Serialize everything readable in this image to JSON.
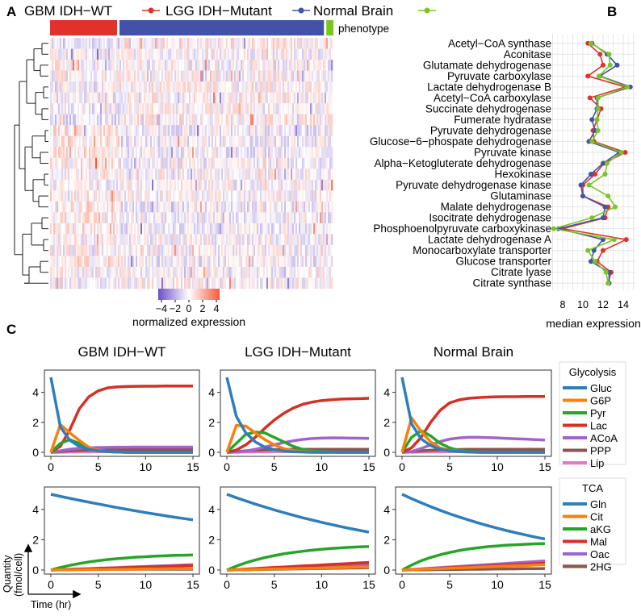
{
  "panels": {
    "a": "A",
    "b": "B",
    "c": "C"
  },
  "legend_top": [
    {
      "label": "GBM IDH−WT",
      "color": "#e0312b"
    },
    {
      "label": "LGG IDH−Mutant",
      "color": "#4252a8"
    },
    {
      "label": "Normal Brain",
      "color": "#78c71f"
    }
  ],
  "chart_data": [
    {
      "type": "heatmap",
      "phenotype_label": "phenotype",
      "rows": [
        "Acetyl−CoA synthase",
        "Aconitase",
        "Glutamate dehydrogenase",
        "Pyruvate carboxylase",
        "Lactate dehydrogenase B",
        "Acetyl−CoA carboxylase",
        "Succinate dehydrogenase",
        "Fumerate hydratase",
        "Pyruvate dehydrogenase",
        "Glucose−6−phospate dehydrogenase",
        "Pyruvate kinase",
        "Alpha−Ketogluterate dehydrogenase",
        "Hexokinase",
        "Pyruvate dehydrogenase kinase",
        "Glutaminase",
        "Malate dehydrogenase",
        "Isocitrate dehydrogenase",
        "Phosphoenolpyruvate carboxykinase",
        "Lactate dehydrogenase A",
        "Monocarboxylate transporter",
        "Glucose transporter",
        "Citrate lyase",
        "Citrate synthase"
      ],
      "column_groups": [
        {
          "name": "GBM IDH-WT",
          "fraction": 0.245,
          "color": "#e0312b"
        },
        {
          "name": "LGG IDH-Mutant",
          "fraction": 0.73,
          "color": "#4252a8"
        },
        {
          "name": "Normal Brain",
          "fraction": 0.025,
          "color": "#78c71f"
        }
      ],
      "color_scale": {
        "min": -4,
        "max": 4,
        "low": "#6a4fc9",
        "mid": "#ffffff",
        "high": "#f45a3a"
      },
      "colorbar_ticks": [
        "−4",
        "−2",
        "0",
        "2",
        "4"
      ],
      "colorbar_label": "normalized expression"
    },
    {
      "type": "line",
      "orientation": "horizontal",
      "xlabel": "median expression",
      "xticks": [
        8,
        10,
        12,
        14
      ],
      "xlim": [
        6.9,
        15.2
      ],
      "series": [
        {
          "name": "GBM IDH-WT",
          "color": "#e0312b",
          "values": [
            10.5,
            11.7,
            12.0,
            10.5,
            14.2,
            10.7,
            11.8,
            11.4,
            11.0,
            11.1,
            14.2,
            12.1,
            11.2,
            10.0,
            10.0,
            12.5,
            12.2,
            8.0,
            14.3,
            12.0,
            11.4,
            12.8,
            12.5
          ]
        },
        {
          "name": "LGG IDH-Mutant",
          "color": "#4252a8",
          "values": [
            10.9,
            12.4,
            13.4,
            11.7,
            14.7,
            11.4,
            11.4,
            10.9,
            11.2,
            10.6,
            13.6,
            12.0,
            10.8,
            9.8,
            10.0,
            12.2,
            12.0,
            7.6,
            12.0,
            11.1,
            10.8,
            12.6,
            12.6
          ]
        },
        {
          "name": "Normal Brain",
          "color": "#78c71f",
          "values": [
            10.8,
            12.6,
            12.7,
            11.6,
            14.4,
            11.5,
            11.5,
            11.4,
            11.5,
            10.9,
            13.8,
            12.4,
            12.2,
            10.6,
            12.5,
            13.2,
            10.9,
            7.1,
            13.1,
            10.5,
            11.2,
            12.3,
            12.5
          ]
        }
      ]
    },
    {
      "type": "line",
      "ylabel": "Quantity (fmol/cell)",
      "xlabel": "Time (hr)",
      "xticks": [
        "0",
        "5",
        "10",
        "15"
      ],
      "yticks": [
        "0",
        "2",
        "4"
      ],
      "xlim": [
        0,
        15
      ],
      "ylim": [
        -0.2,
        5.2
      ],
      "x": [
        0,
        1,
        2,
        3,
        4,
        5,
        6,
        7,
        8,
        9,
        10,
        11,
        12,
        13,
        14,
        15
      ],
      "legends": [
        {
          "title": "Glycolysis",
          "entries": [
            {
              "name": "Gluc",
              "color": "#2f7ebc"
            },
            {
              "name": "G6P",
              "color": "#f8800f"
            },
            {
              "name": "Pyr",
              "color": "#27a52b"
            },
            {
              "name": "Lac",
              "color": "#d62f26"
            },
            {
              "name": "ACoA",
              "color": "#a363cf"
            },
            {
              "name": "PPP",
              "color": "#8b564b"
            },
            {
              "name": "Lip",
              "color": "#e57ac0"
            }
          ]
        },
        {
          "title": "TCA",
          "entries": [
            {
              "name": "Gln",
              "color": "#2f7ebc"
            },
            {
              "name": "Cit",
              "color": "#f8800f"
            },
            {
              "name": "aKG",
              "color": "#27a52b"
            },
            {
              "name": "Mal",
              "color": "#d62f26"
            },
            {
              "name": "Oac",
              "color": "#a363cf"
            },
            {
              "name": "2HG",
              "color": "#8b564b"
            }
          ]
        }
      ],
      "conditions": [
        {
          "title": "GBM IDH−WT",
          "glycolysis": {
            "Gluc": [
              5,
              1.7,
              0.8,
              0.4,
              0.2,
              0.1,
              0.05,
              0.02,
              0,
              0,
              0,
              0,
              0,
              0,
              0,
              0
            ],
            "G6P": [
              0,
              1.85,
              1.3,
              0.8,
              0.35,
              0.15,
              0.05,
              0.02,
              0,
              0,
              0,
              0,
              0,
              0,
              0,
              0
            ],
            "Pyr": [
              0,
              0.6,
              0.85,
              0.6,
              0.3,
              0.15,
              0.05,
              0.02,
              0,
              0,
              0,
              0,
              0,
              0,
              0,
              0
            ],
            "Lac": [
              0,
              0.4,
              1.5,
              2.9,
              3.7,
              4.1,
              4.3,
              4.36,
              4.39,
              4.4,
              4.41,
              4.41,
              4.42,
              4.42,
              4.42,
              4.42
            ],
            "ACoA": [
              0,
              0.1,
              0.2,
              0.27,
              0.3,
              0.32,
              0.33,
              0.34,
              0.34,
              0.35,
              0.35,
              0.35,
              0.35,
              0.35,
              0.35,
              0.35
            ],
            "PPP": [
              0,
              0.05,
              0.1,
              0.13,
              0.15,
              0.16,
              0.17,
              0.17,
              0.18,
              0.18,
              0.18,
              0.18,
              0.18,
              0.18,
              0.18,
              0.18
            ],
            "Lip": [
              0,
              0.01,
              0.02,
              0.03,
              0.03,
              0.04,
              0.04,
              0.04,
              0.05,
              0.05,
              0.05,
              0.05,
              0.05,
              0.05,
              0.05,
              0.05
            ]
          },
          "tca": {
            "Gln": [
              5,
              4.86,
              4.73,
              4.6,
              4.48,
              4.36,
              4.24,
              4.12,
              4.01,
              3.9,
              3.79,
              3.69,
              3.59,
              3.49,
              3.4,
              3.31
            ],
            "Cit": [
              0,
              0.01,
              0.01,
              0.02,
              0.03,
              0.03,
              0.04,
              0.05,
              0.05,
              0.06,
              0.07,
              0.07,
              0.08,
              0.09,
              0.09,
              0.1
            ],
            "aKG": [
              0,
              0.17,
              0.31,
              0.43,
              0.53,
              0.62,
              0.69,
              0.75,
              0.8,
              0.85,
              0.88,
              0.92,
              0.94,
              0.97,
              0.98,
              1.0
            ],
            "Mal": [
              0,
              0.02,
              0.04,
              0.06,
              0.08,
              0.1,
              0.12,
              0.14,
              0.16,
              0.18,
              0.2,
              0.22,
              0.24,
              0.26,
              0.28,
              0.3
            ],
            "Oac": [
              0,
              0.02,
              0.05,
              0.07,
              0.09,
              0.12,
              0.14,
              0.16,
              0.19,
              0.21,
              0.23,
              0.26,
              0.28,
              0.3,
              0.33,
              0.35
            ],
            "2HG": [
              0,
              0.02,
              0.03,
              0.04,
              0.04,
              0.05,
              0.05,
              0.05,
              0.05,
              0.05,
              0.05,
              0.05,
              0.05,
              0.05,
              0.05,
              0.05
            ]
          }
        },
        {
          "title": "LGG IDH−Mutant",
          "glycolysis": {
            "Gluc": [
              5,
              2.4,
              1.3,
              0.7,
              0.35,
              0.18,
              0.09,
              0.04,
              0.02,
              0,
              0,
              0,
              0,
              0,
              0,
              0
            ],
            "G6P": [
              0,
              1.8,
              1.75,
              1.3,
              0.85,
              0.5,
              0.25,
              0.12,
              0.05,
              0.02,
              0,
              0,
              0,
              0,
              0,
              0
            ],
            "Pyr": [
              0,
              0.6,
              1.2,
              1.35,
              1.3,
              1.0,
              0.7,
              0.4,
              0.2,
              0.1,
              0.05,
              0.02,
              0,
              0,
              0,
              0
            ],
            "Lac": [
              0,
              0.15,
              0.5,
              1.0,
              1.6,
              2.15,
              2.6,
              2.95,
              3.2,
              3.35,
              3.45,
              3.5,
              3.55,
              3.57,
              3.58,
              3.6
            ],
            "ACoA": [
              0,
              0.02,
              0.08,
              0.2,
              0.35,
              0.5,
              0.65,
              0.77,
              0.86,
              0.92,
              0.95,
              0.96,
              0.96,
              0.95,
              0.94,
              0.93
            ],
            "PPP": [
              0,
              0.05,
              0.1,
              0.14,
              0.16,
              0.18,
              0.19,
              0.2,
              0.2,
              0.2,
              0.2,
              0.2,
              0.2,
              0.2,
              0.2,
              0.2
            ],
            "Lip": [
              0,
              0.01,
              0.02,
              0.03,
              0.03,
              0.04,
              0.04,
              0.04,
              0.05,
              0.05,
              0.05,
              0.05,
              0.05,
              0.05,
              0.05,
              0.05
            ]
          },
          "tca": {
            "Gln": [
              5,
              4.77,
              4.56,
              4.35,
              4.16,
              3.97,
              3.79,
              3.62,
              3.45,
              3.3,
              3.15,
              3.01,
              2.87,
              2.74,
              2.62,
              2.5
            ],
            "Cit": [
              0,
              0.01,
              0.03,
              0.04,
              0.05,
              0.07,
              0.08,
              0.09,
              0.11,
              0.12,
              0.13,
              0.15,
              0.16,
              0.17,
              0.19,
              0.2
            ],
            "aKG": [
              0,
              0.26,
              0.48,
              0.66,
              0.82,
              0.95,
              1.07,
              1.16,
              1.24,
              1.31,
              1.37,
              1.42,
              1.46,
              1.5,
              1.53,
              1.55
            ],
            "Mal": [
              0,
              0.03,
              0.07,
              0.1,
              0.13,
              0.17,
              0.2,
              0.23,
              0.27,
              0.3,
              0.33,
              0.37,
              0.4,
              0.43,
              0.47,
              0.5
            ],
            "Oac": [
              0,
              0.02,
              0.05,
              0.07,
              0.09,
              0.12,
              0.14,
              0.16,
              0.19,
              0.21,
              0.23,
              0.26,
              0.28,
              0.3,
              0.33,
              0.35
            ],
            "2HG": [
              0,
              0.01,
              0.02,
              0.03,
              0.04,
              0.05,
              0.06,
              0.07,
              0.08,
              0.09,
              0.1,
              0.11,
              0.12,
              0.13,
              0.14,
              0.15
            ]
          }
        },
        {
          "title": "Normal Brain",
          "glycolysis": {
            "Gluc": [
              5,
              1.9,
              0.9,
              0.45,
              0.2,
              0.1,
              0.05,
              0.02,
              0,
              0,
              0,
              0,
              0,
              0,
              0,
              0
            ],
            "G6P": [
              0,
              2.3,
              1.4,
              0.7,
              0.3,
              0.12,
              0.05,
              0.02,
              0,
              0,
              0,
              0,
              0,
              0,
              0,
              0
            ],
            "Pyr": [
              0,
              1.0,
              1.45,
              1.1,
              0.6,
              0.3,
              0.12,
              0.05,
              0.02,
              0,
              0,
              0,
              0,
              0,
              0,
              0
            ],
            "Lac": [
              0,
              0.3,
              1.0,
              2.0,
              2.8,
              3.3,
              3.5,
              3.6,
              3.65,
              3.68,
              3.7,
              3.71,
              3.71,
              3.72,
              3.72,
              3.72
            ],
            "ACoA": [
              0,
              0.05,
              0.25,
              0.5,
              0.72,
              0.88,
              0.96,
              1.0,
              1.0,
              0.98,
              0.96,
              0.93,
              0.9,
              0.88,
              0.85,
              0.82
            ],
            "PPP": [
              0,
              0.05,
              0.1,
              0.14,
              0.16,
              0.18,
              0.19,
              0.2,
              0.2,
              0.2,
              0.2,
              0.2,
              0.2,
              0.2,
              0.2,
              0.2
            ],
            "Lip": [
              0,
              0.01,
              0.02,
              0.03,
              0.03,
              0.04,
              0.04,
              0.04,
              0.05,
              0.05,
              0.05,
              0.05,
              0.05,
              0.05,
              0.05,
              0.05
            ]
          },
          "tca": {
            "Gln": [
              5,
              4.71,
              4.44,
              4.18,
              3.94,
              3.71,
              3.5,
              3.3,
              3.11,
              2.93,
              2.76,
              2.6,
              2.45,
              2.31,
              2.17,
              2.05
            ],
            "Cit": [
              0,
              0.02,
              0.05,
              0.07,
              0.09,
              0.12,
              0.14,
              0.16,
              0.19,
              0.21,
              0.23,
              0.26,
              0.28,
              0.3,
              0.33,
              0.35
            ],
            "aKG": [
              0,
              0.33,
              0.61,
              0.83,
              1.01,
              1.16,
              1.29,
              1.39,
              1.47,
              1.54,
              1.59,
              1.64,
              1.67,
              1.7,
              1.73,
              1.75
            ],
            "Mal": [
              0,
              0.03,
              0.06,
              0.09,
              0.12,
              0.15,
              0.18,
              0.21,
              0.24,
              0.27,
              0.3,
              0.33,
              0.36,
              0.39,
              0.42,
              0.45
            ],
            "Oac": [
              0,
              0.04,
              0.08,
              0.12,
              0.16,
              0.2,
              0.24,
              0.28,
              0.32,
              0.36,
              0.4,
              0.44,
              0.48,
              0.52,
              0.56,
              0.6
            ],
            "2HG": [
              0,
              0.01,
              0.01,
              0.02,
              0.03,
              0.03,
              0.04,
              0.05,
              0.05,
              0.06,
              0.07,
              0.07,
              0.08,
              0.09,
              0.09,
              0.1
            ]
          }
        }
      ]
    }
  ]
}
